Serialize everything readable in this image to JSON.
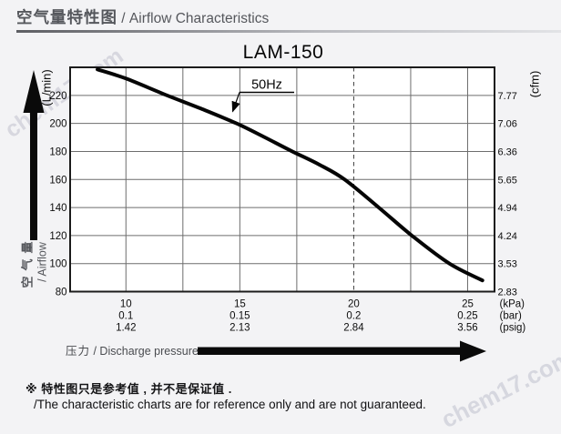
{
  "header": {
    "title_cn": "空气量特性图",
    "title_en": " / Airflow Characteristics"
  },
  "watermark": {
    "text": "chem17.com"
  },
  "chart_data": {
    "type": "line",
    "title": "LAM-150",
    "grid": true,
    "legend": "none",
    "series": [
      {
        "name": "50Hz",
        "points": [
          [
            8.75,
            238.5
          ],
          [
            10,
            232
          ],
          [
            11.8,
            220
          ],
          [
            13.3,
            210.5
          ],
          [
            14.85,
            200
          ],
          [
            16.1,
            190
          ],
          [
            17.3,
            180
          ],
          [
            18.5,
            170.5
          ],
          [
            19.6,
            160
          ],
          [
            21.1,
            140
          ],
          [
            22.55,
            120
          ],
          [
            24.2,
            100
          ],
          [
            25.65,
            88
          ]
        ]
      }
    ],
    "x_axis": {
      "label_cn": "压力",
      "label_en": " / Discharge pressure",
      "units": [
        "(kPa)",
        "(bar)",
        "(psig)"
      ],
      "tick_values": [
        10,
        15,
        20,
        25
      ],
      "ticks": [
        {
          "kpa": "10",
          "bar": "0.1",
          "psig": "1.42"
        },
        {
          "kpa": "15",
          "bar": "0.15",
          "psig": "2.13"
        },
        {
          "kpa": "20",
          "bar": "0.2",
          "psig": "2.84"
        },
        {
          "kpa": "25",
          "bar": "0.25",
          "psig": "3.56"
        }
      ],
      "minor_grid_values": [
        12.5,
        17.5,
        22.5
      ],
      "dashed_value": 20,
      "range": [
        7.55,
        26.18
      ]
    },
    "y_axis_left": {
      "unit": "(L/min)",
      "name_cn": "空气量",
      "name_en": "/ Airflow",
      "ticks": [
        220,
        200,
        180,
        160,
        140,
        120,
        100,
        80
      ],
      "range": [
        80,
        240
      ]
    },
    "y_axis_right": {
      "unit": "(cfm)",
      "ticks": [
        "7.77",
        "7.06",
        "6.36",
        "5.65",
        "4.94",
        "4.24",
        "3.53",
        "2.83"
      ]
    },
    "annotation": {
      "label": "50Hz"
    }
  },
  "note": {
    "line1": "※ 特性图只是参考值 , 并不是保证值 .",
    "line2": "/The characteristic charts are for reference only and are not guaranteed."
  }
}
